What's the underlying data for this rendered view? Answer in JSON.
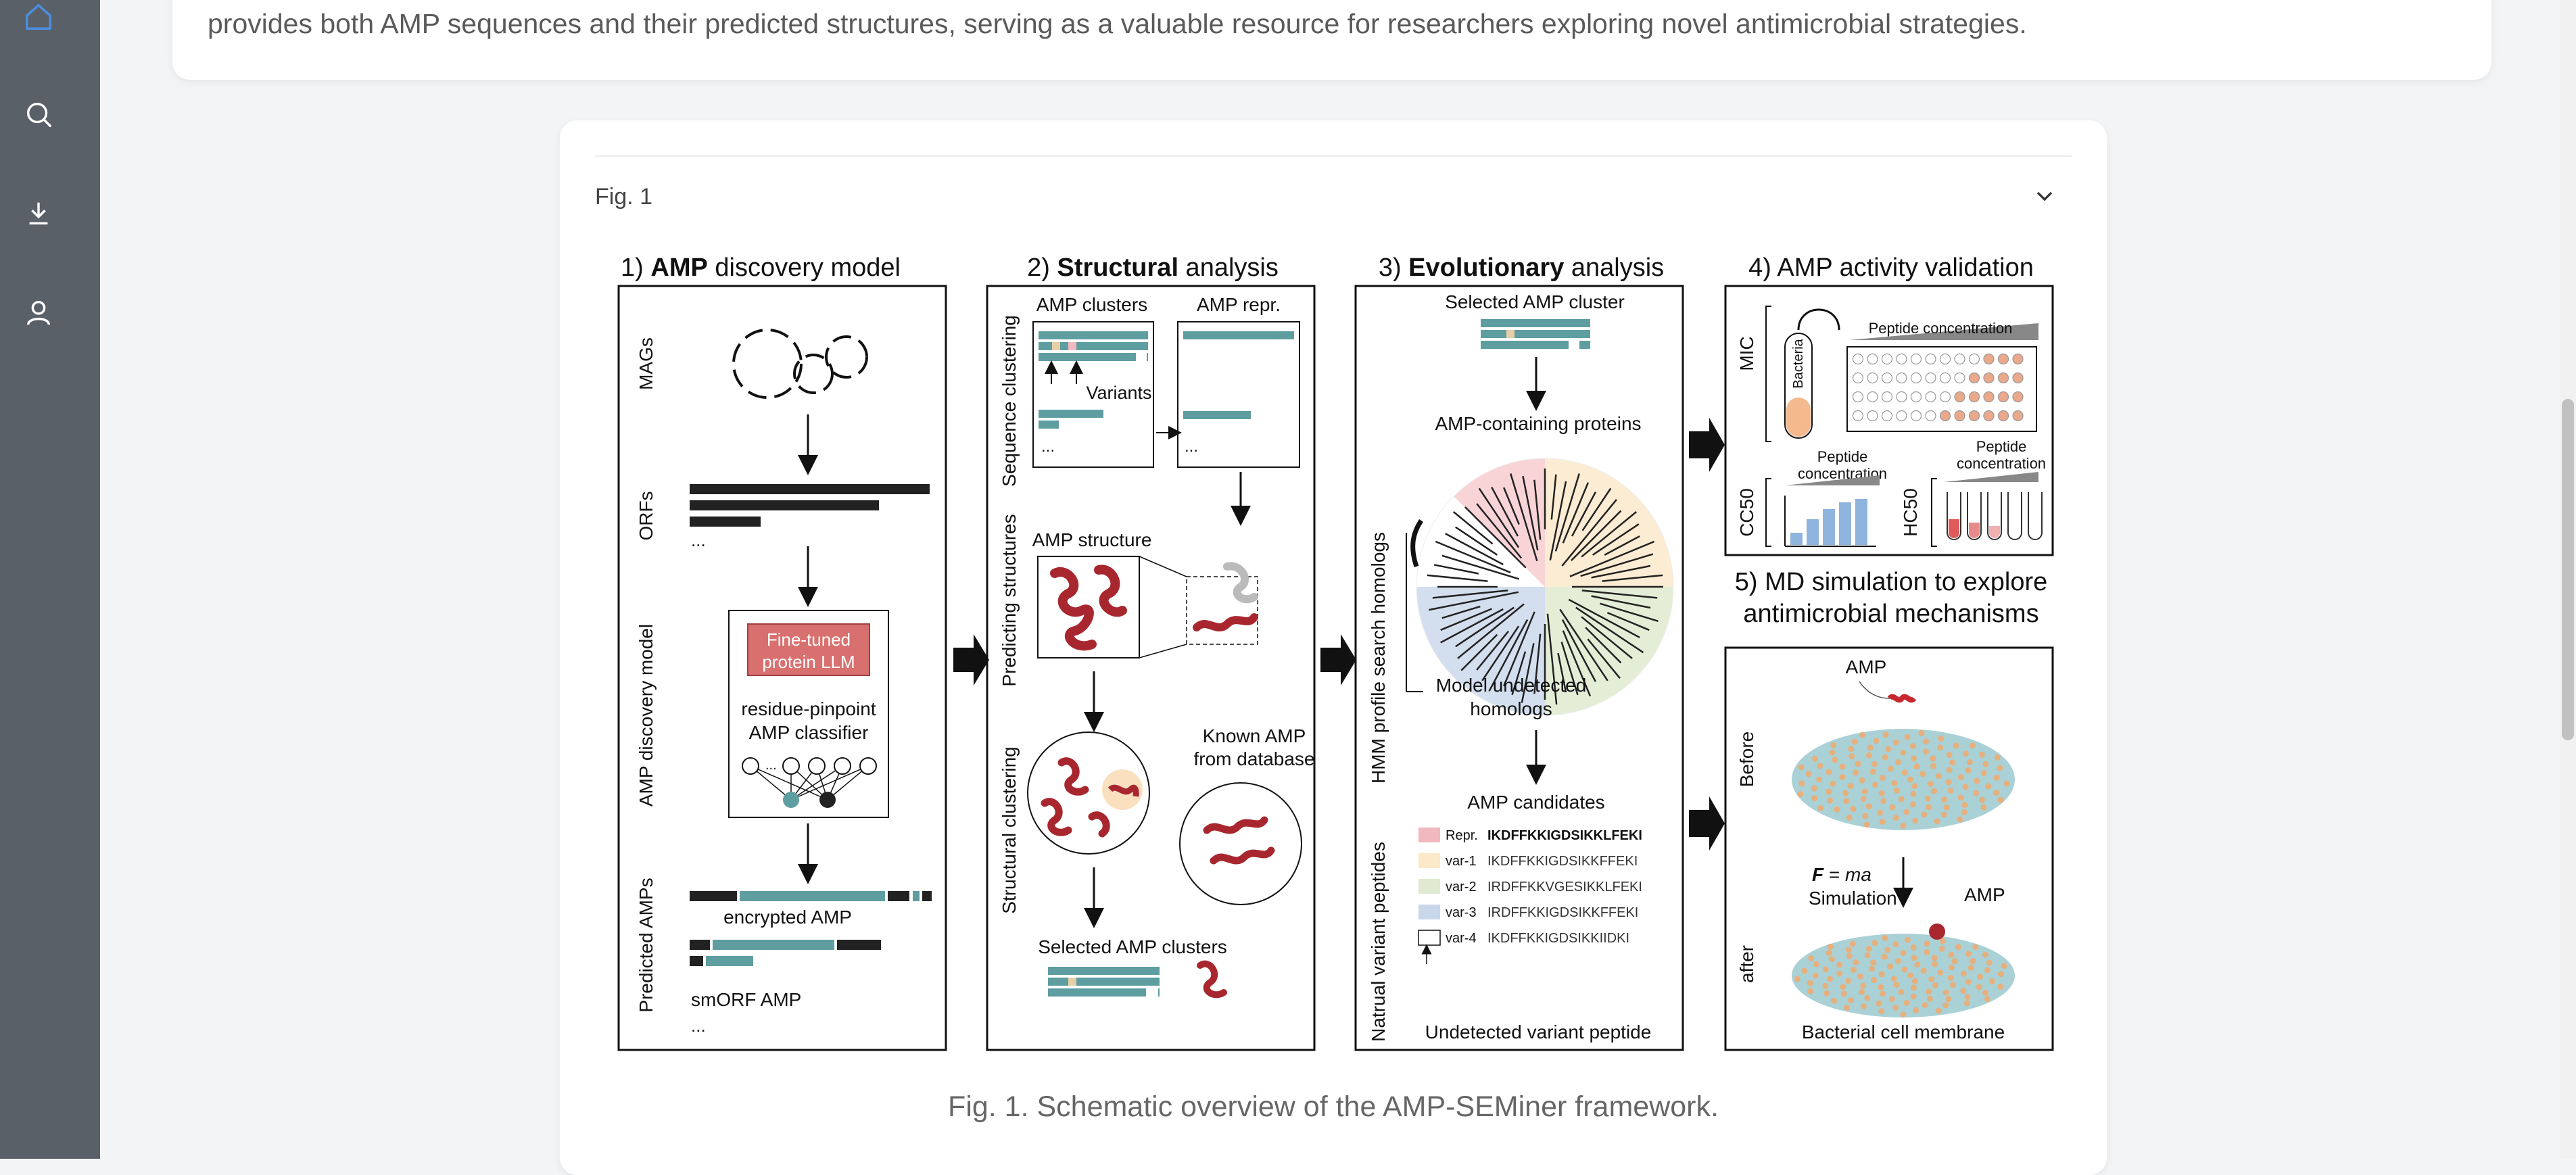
{
  "sidebar": {
    "icons": [
      "home-icon",
      "search-icon",
      "download-icon",
      "user-icon"
    ],
    "active_color": "#4a90e2"
  },
  "intro": {
    "text": "provides both AMP sequences and their predicted structures, serving as a valuable resource for researchers exploring novel antimicrobial strategies."
  },
  "figure_card": {
    "label": "Fig. 1",
    "caption": "Fig. 1. Schematic overview of the AMP-SEMiner framework."
  },
  "panel1": {
    "title_pre": "1) ",
    "title_bold": "AMP",
    "title_post": " discovery model",
    "rows": [
      "MAGs",
      "ORFs",
      "AMP discovery model",
      "Predicted AMPs"
    ],
    "llm_line1": "Fine-tuned",
    "llm_line2": "protein LLM",
    "classifier_line1": "residue-pinpoint",
    "classifier_line2": "AMP classifier",
    "encrypted": "encrypted AMP",
    "smorf": "smORF AMP",
    "ellipsis": "..."
  },
  "panel2": {
    "title_pre": "2) ",
    "title_bold": "Structural",
    "title_post": " analysis",
    "rows": [
      "Sequence clustering",
      "Predicting structures",
      "Structural clustering"
    ],
    "amp_clusters": "AMP clusters",
    "amp_repr": "AMP repr.",
    "variants": "Variants",
    "amp_structure": "AMP structure",
    "known_line1": "Known AMP",
    "known_line2": "from database",
    "selected": "Selected AMP clusters",
    "ellipsis": "..."
  },
  "panel3": {
    "title_pre": "3) ",
    "title_bold": "Evolutionary",
    "title_post": " analysis",
    "rows": [
      "HMM profile search homologs",
      "Natrual variant peptides"
    ],
    "selected": "Selected AMP cluster",
    "containing": "AMP-containing proteins",
    "undetected_line1": "Model undetected",
    "undetected_line2": "homologs",
    "candidates": "AMP candidates",
    "variant_rows": [
      {
        "label": "Repr.",
        "seq": "IKDFFKKIGDSIKKLFEKI",
        "swatch": "#f2b8bf"
      },
      {
        "label": "var-1",
        "seq": "IKDFFKKIGDSIKKFFEKI",
        "swatch": "#fbe9c9"
      },
      {
        "label": "var-2",
        "seq": "IRDFFKKVGESIKKLFEKI",
        "swatch": "#dfead0"
      },
      {
        "label": "var-3",
        "seq": "IRDFFKKIGDSIKKFFEKI",
        "swatch": "#c9d7ea"
      },
      {
        "label": "var-4",
        "seq": "IKDFFKKIGDSIKKIIDKI",
        "swatch": "#ffffff"
      }
    ],
    "undetected_variant": "Undetected variant peptide"
  },
  "panel4": {
    "title": "4) AMP activity validation",
    "rows": [
      "MIC",
      "CC50",
      "HC50"
    ],
    "bacteria": "Bacteria",
    "peptide_conc": "Peptide concentration",
    "peptide": "Peptide",
    "concentration": "concentration"
  },
  "panel5": {
    "title_line1": "5) MD simulation to explore",
    "title_line2": "antimicrobial mechanisms",
    "rows": [
      "Before",
      "after"
    ],
    "amp": "AMP",
    "formula_f": "F",
    "formula_rest": " = ",
    "formula_ma": "ma",
    "simulation": "Simulation",
    "amp2": "AMP",
    "membrane": "Bacterial cell membrane"
  },
  "colors": {
    "teal": "#5f9ea0",
    "dark_square": "#222222",
    "llm_box": "#d97070",
    "helix": "#a8272f",
    "tan_square": "#e6cfa6"
  }
}
